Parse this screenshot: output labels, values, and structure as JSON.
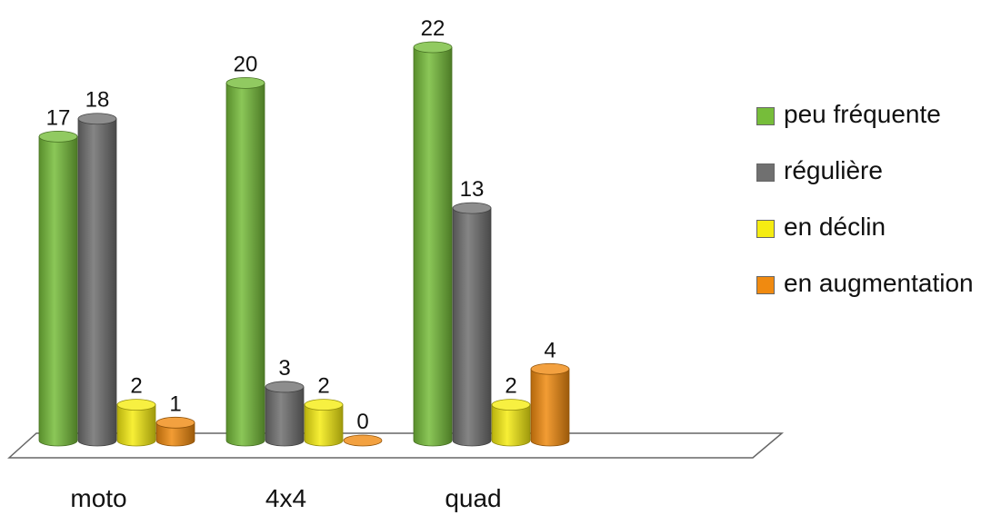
{
  "chart_data": {
    "type": "bar",
    "categories": [
      "moto",
      "4x4",
      "quad"
    ],
    "series": [
      {
        "name": "peu fréquente",
        "values": [
          17,
          20,
          22
        ],
        "color": "#76bd3a"
      },
      {
        "name": "régulière",
        "values": [
          18,
          3,
          13
        ],
        "color": "#707070"
      },
      {
        "name": "en déclin",
        "values": [
          2,
          2,
          2
        ],
        "color": "#f5ec12"
      },
      {
        "name": "en augmentation",
        "values": [
          1,
          0,
          4
        ],
        "color": "#f08a10"
      }
    ],
    "title": "",
    "xlabel": "",
    "ylabel": "",
    "ylim": [
      0,
      22
    ],
    "legend": "right",
    "grid": false,
    "style": "3d-cylinder"
  }
}
